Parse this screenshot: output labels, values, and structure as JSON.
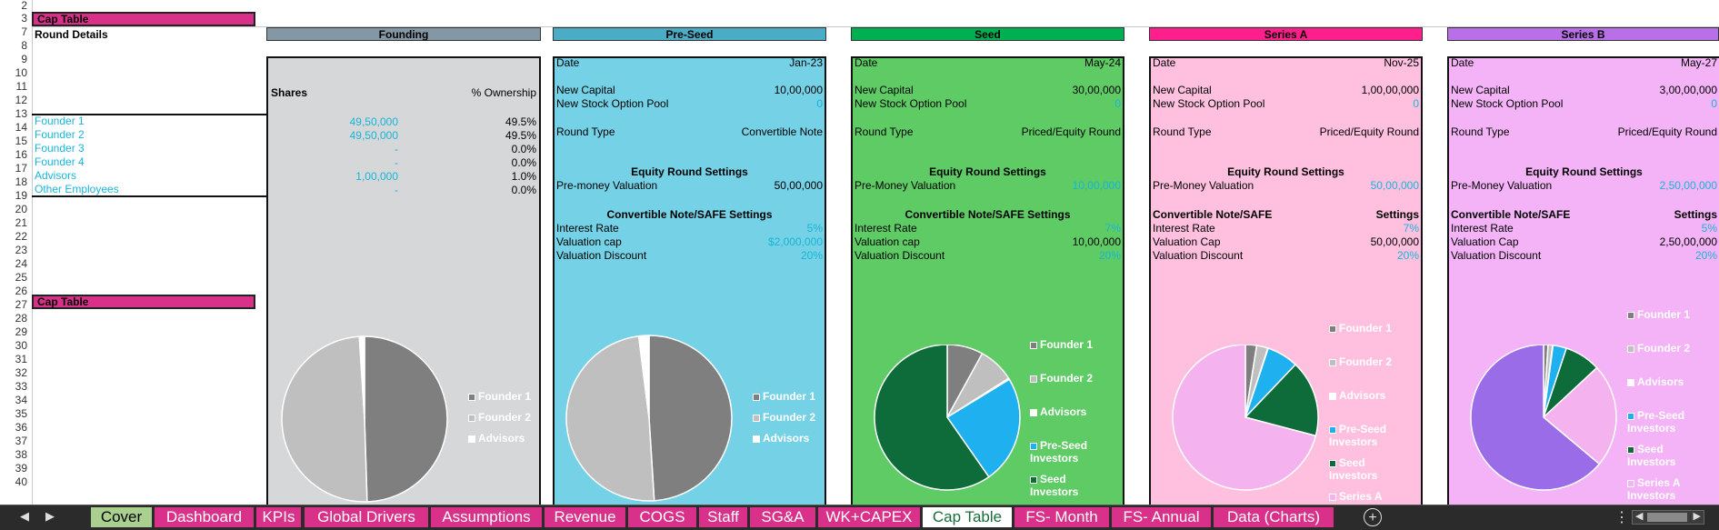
{
  "row_numbers": [
    "2",
    "3",
    "7",
    "8",
    "9",
    "10",
    "11",
    "12",
    "13",
    "14",
    "15",
    "16",
    "17",
    "18",
    "19",
    "20",
    "21",
    "22",
    "23",
    "24",
    "25",
    "26",
    "27",
    "28",
    "29",
    "30",
    "31",
    "32",
    "33",
    "34",
    "35",
    "36",
    "37",
    "38",
    "39",
    "40"
  ],
  "left": {
    "cap_table_header": "Cap Table",
    "round_details": "Round Details",
    "cap_table_header2": "Cap Table",
    "holders": [
      "Founder 1",
      "Founder 2",
      "Founder 3",
      "Founder 4",
      "Advisors",
      "Other Employees"
    ]
  },
  "founding": {
    "title": "Founding",
    "color": "#8497a5",
    "shares_label": "Shares",
    "ownership_label": "% Ownership",
    "shares": [
      "49,50,000",
      "49,50,000",
      "-",
      "-",
      "1,00,000",
      "-"
    ],
    "ownership": [
      "49.5%",
      "49.5%",
      "0.0%",
      "0.0%",
      "1.0%",
      "0.0%"
    ],
    "legend": [
      "Founder 1",
      "Founder 2",
      "Advisors"
    ]
  },
  "preseed": {
    "title": "Pre-Seed",
    "color": "#4bacc6",
    "date_label": "Date",
    "date": "Jan-23",
    "new_capital_label": "New Capital",
    "new_capital": "10,00,000",
    "pool_label": "New Stock Option Pool",
    "pool": "0",
    "round_type_label": "Round Type",
    "round_type": "Convertible Note",
    "equity_settings": "Equity Round Settings",
    "premoney_label": "Pre-money Valuation",
    "premoney": "50,00,000",
    "conv_settings": "Convertible Note/SAFE Settings",
    "interest_label": "Interest Rate",
    "interest": "5%",
    "cap_label": "Valuation cap",
    "cap": "$2,000,000",
    "discount_label": "Valuation Discount",
    "discount": "20%",
    "legend": [
      "Founder 1",
      "Founder 2",
      "Advisors"
    ]
  },
  "seed": {
    "title": "Seed",
    "color": "#00b050",
    "date_label": "Date",
    "date": "May-24",
    "new_capital_label": "New Capital",
    "new_capital": "30,00,000",
    "pool_label": "New Stock Option Pool",
    "pool": "0",
    "round_type_label": "Round Type",
    "round_type": "Priced/Equity Round",
    "equity_settings": "Equity Round Settings",
    "premoney_label": "Pre-Money Valuation",
    "premoney": "10,00,000",
    "conv_settings": "Convertible Note/SAFE Settings",
    "interest_label": "Interest Rate",
    "interest": "7%",
    "cap_label": "Valuation cap",
    "cap": "10,00,000",
    "discount_label": "Valuation Discount",
    "discount": "20%",
    "legend": [
      "Founder 1",
      "Founder 2",
      "Advisors",
      "Pre-Seed Investors",
      "Seed Investors"
    ]
  },
  "seriesa": {
    "title": "Series A",
    "color": "#ff1f8c",
    "date_label": "Date",
    "date": "Nov-25",
    "new_capital_label": "New Capital",
    "new_capital": "1,00,00,000",
    "pool_label": "New Stock Option Pool",
    "pool": "0",
    "round_type_label": "Round Type",
    "round_type": "Priced/Equity Round",
    "equity_settings": "Equity Round Settings",
    "premoney_label": "Pre-Money Valuation",
    "premoney": "50,00,000",
    "conv_settings_left": "Convertible Note/SAFE",
    "conv_settings_right": "Settings",
    "interest_label": "Interest Rate",
    "interest": "7%",
    "cap_label": "Valuation Cap",
    "cap": "50,00,000",
    "discount_label": "Valuation Discount",
    "discount": "20%",
    "legend": [
      "Founder 1",
      "Founder 2",
      "Advisors",
      "Pre-Seed Investors",
      "Seed Investors",
      "Series A"
    ]
  },
  "seriesb": {
    "title": "Series B",
    "color": "#b86fe8",
    "date_label": "Date",
    "date": "May-27",
    "new_capital_label": "New Capital",
    "new_capital": "3,00,00,000",
    "pool_label": "New Stock Option Pool",
    "pool": "0",
    "round_type_label": "Round Type",
    "round_type": "Priced/Equity Round",
    "equity_settings": "Equity Round Settings",
    "premoney_label": "Pre-Money Valuation",
    "premoney": "2,50,00,000",
    "conv_settings_left": "Convertible Note/SAFE",
    "conv_settings_right": "Settings",
    "interest_label": "Interest Rate",
    "interest": "5%",
    "cap_label": "Valuation Cap",
    "cap": "2,50,00,000",
    "discount_label": "Valuation Discount",
    "discount": "20%",
    "legend": [
      "Founder 1",
      "Founder 2",
      "Advisors",
      "Pre-Seed Investors",
      "Seed Investors",
      "Series A Investors"
    ]
  },
  "tabs": [
    "Cover",
    "Dashboard",
    "KPIs",
    "Global Drivers",
    "Assumptions",
    "Revenue",
    "COGS",
    "Staff",
    "SG&A",
    "WK+CAPEX",
    "Cap Table",
    "FS- Month",
    "FS- Annual",
    "Data (Charts)"
  ],
  "active_tab": "Cap Table",
  "pies": {
    "founding": [
      {
        "name": "Founder 1",
        "value": 49.5,
        "color": "#7f7f7f"
      },
      {
        "name": "Founder 2",
        "value": 49.5,
        "color": "#bfbfbf"
      },
      {
        "name": "Advisors",
        "value": 1.0,
        "color": "#ffffff"
      }
    ],
    "preseed": [
      {
        "name": "Founder 1",
        "value": 49.0,
        "color": "#7f7f7f"
      },
      {
        "name": "Founder 2",
        "value": 49.0,
        "color": "#bfbfbf"
      },
      {
        "name": "Advisors",
        "value": 2.0,
        "color": "#ffffff"
      }
    ],
    "seed": [
      {
        "name": "Founder 1",
        "value": 8,
        "color": "#7f7f7f"
      },
      {
        "name": "Founder 2",
        "value": 8,
        "color": "#bfbfbf"
      },
      {
        "name": "Advisors",
        "value": 0.3,
        "color": "#ffffff"
      },
      {
        "name": "Pre-Seed Investors",
        "value": 24,
        "color": "#1fb0f0"
      },
      {
        "name": "Seed Investors",
        "value": 59.7,
        "color": "#0e6b3a"
      }
    ],
    "seriesa": [
      {
        "name": "Founder 1",
        "value": 2.5,
        "color": "#7f7f7f"
      },
      {
        "name": "Founder 2",
        "value": 2.5,
        "color": "#bfbfbf"
      },
      {
        "name": "Advisors",
        "value": 0.1,
        "color": "#ffffff"
      },
      {
        "name": "Pre-Seed Investors",
        "value": 7,
        "color": "#1fb0f0"
      },
      {
        "name": "Seed Investors",
        "value": 17,
        "color": "#0e6b3a"
      },
      {
        "name": "Series A",
        "value": 70.9,
        "color": "#f4b2ee"
      }
    ],
    "seriesb": [
      {
        "name": "Founder 1",
        "value": 1,
        "color": "#7f7f7f"
      },
      {
        "name": "Founder 2",
        "value": 1,
        "color": "#bfbfbf"
      },
      {
        "name": "Advisors",
        "value": 0.1,
        "color": "#ffffff"
      },
      {
        "name": "Pre-Seed Investors",
        "value": 3,
        "color": "#1fb0f0"
      },
      {
        "name": "Seed Investors",
        "value": 8,
        "color": "#0e6b3a"
      },
      {
        "name": "Series A Investors",
        "value": 23,
        "color": "#f4b2ee"
      },
      {
        "name": "Series B",
        "value": 63.9,
        "color": "#9b6ce8"
      }
    ]
  }
}
